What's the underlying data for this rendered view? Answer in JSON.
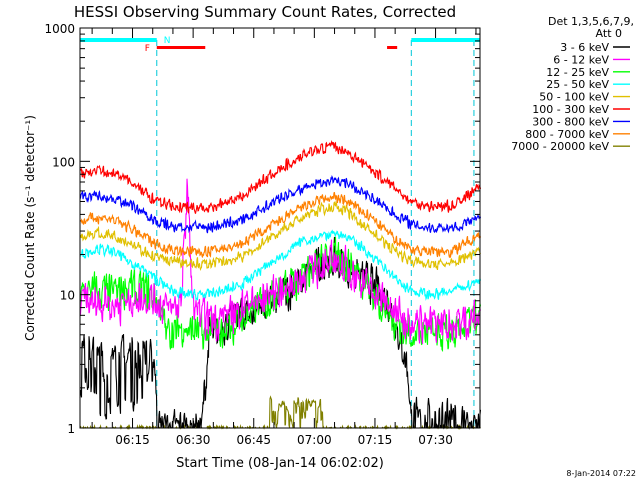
{
  "chart_data": {
    "type": "line",
    "title": "HESSI Observing Summary Count Rates, Corrected",
    "xlabel": "Start Time (08-Jan-14 06:02:02)",
    "ylabel": "Corrected Count Rate (s⁻¹ detector⁻¹)",
    "yscale": "log",
    "ylim": [
      1,
      1000
    ],
    "xlim_minutes_after_0602": [
      0,
      99
    ],
    "y_tick_labels": [
      "1",
      "10",
      "100",
      "1000"
    ],
    "x_tick_labels": [
      "06:15",
      "06:30",
      "06:45",
      "07:00",
      "07:15",
      "07:30"
    ],
    "legend_placement": "right",
    "legend_header": [
      "Det 1,3,5,6,7,9,",
      "Att 0"
    ],
    "series": [
      {
        "name": "3 - 6 keV",
        "color": "#000000",
        "points": [
          [
            0,
            3.5
          ],
          [
            4,
            3
          ],
          [
            7,
            2.5
          ],
          [
            10,
            3.2
          ],
          [
            18.5,
            3
          ],
          [
            19,
            1
          ],
          [
            30,
            1
          ],
          [
            32,
            5
          ],
          [
            40,
            7
          ],
          [
            48,
            9
          ],
          [
            55,
            13
          ],
          [
            60,
            17
          ],
          [
            63,
            18
          ],
          [
            66,
            16
          ],
          [
            72,
            12
          ],
          [
            76,
            9
          ],
          [
            78,
            6
          ],
          [
            81,
            3
          ],
          [
            82,
            1
          ],
          [
            93,
            1
          ],
          [
            99,
            1
          ]
        ]
      },
      {
        "name": "6 - 12 keV",
        "color": "#ff00ff",
        "points": [
          [
            0,
            8.5
          ],
          [
            4,
            9
          ],
          [
            8,
            8.2
          ],
          [
            12,
            9
          ],
          [
            16,
            10
          ],
          [
            19,
            9
          ],
          [
            22,
            7.5
          ],
          [
            25,
            9
          ],
          [
            26.5,
            60
          ],
          [
            28,
            7.5
          ],
          [
            32,
            6.5
          ],
          [
            36,
            6.5
          ],
          [
            40,
            8
          ],
          [
            48,
            10
          ],
          [
            55,
            14
          ],
          [
            60,
            17
          ],
          [
            63,
            18
          ],
          [
            66,
            16
          ],
          [
            70,
            12
          ],
          [
            75,
            9
          ],
          [
            80,
            6.5
          ],
          [
            86,
            6
          ],
          [
            92,
            6
          ],
          [
            99,
            7
          ]
        ]
      },
      {
        "name": "12 - 25 keV",
        "color": "#00ff00",
        "points": [
          [
            0,
            10.5
          ],
          [
            4,
            11
          ],
          [
            8,
            10.2
          ],
          [
            12,
            11
          ],
          [
            16,
            11
          ],
          [
            19,
            9
          ],
          [
            22,
            5
          ],
          [
            26,
            6
          ],
          [
            28,
            5.2
          ],
          [
            32,
            5
          ],
          [
            36,
            5.5
          ],
          [
            40,
            6.5
          ],
          [
            48,
            10
          ],
          [
            55,
            14
          ],
          [
            60,
            18
          ],
          [
            63,
            19
          ],
          [
            66,
            17
          ],
          [
            70,
            13
          ],
          [
            75,
            8
          ],
          [
            80,
            5.5
          ],
          [
            86,
            5
          ],
          [
            92,
            5
          ],
          [
            99,
            7
          ]
        ]
      },
      {
        "name": "25 - 50 keV",
        "color": "#00ffff",
        "points": [
          [
            0,
            20
          ],
          [
            4,
            22
          ],
          [
            8,
            21
          ],
          [
            12,
            18
          ],
          [
            16,
            15
          ],
          [
            19,
            13
          ],
          [
            22,
            11
          ],
          [
            26,
            10
          ],
          [
            28,
            10
          ],
          [
            32,
            10
          ],
          [
            40,
            12
          ],
          [
            48,
            18
          ],
          [
            55,
            25
          ],
          [
            60,
            28
          ],
          [
            63,
            29
          ],
          [
            66,
            27
          ],
          [
            72,
            20
          ],
          [
            78,
            13
          ],
          [
            82,
            11
          ],
          [
            86,
            10
          ],
          [
            92,
            10.5
          ],
          [
            99,
            13
          ]
        ]
      },
      {
        "name": "50 - 100 keV",
        "color": "#e0c000",
        "points": [
          [
            0,
            27
          ],
          [
            4,
            29
          ],
          [
            8,
            28
          ],
          [
            12,
            25
          ],
          [
            16,
            21
          ],
          [
            19,
            19
          ],
          [
            22,
            18
          ],
          [
            26,
            17
          ],
          [
            28,
            17
          ],
          [
            32,
            17
          ],
          [
            40,
            19
          ],
          [
            48,
            28
          ],
          [
            55,
            38
          ],
          [
            60,
            44
          ],
          [
            63,
            46
          ],
          [
            66,
            42
          ],
          [
            72,
            30
          ],
          [
            78,
            21
          ],
          [
            82,
            18
          ],
          [
            86,
            17
          ],
          [
            92,
            17
          ],
          [
            99,
            22
          ]
        ]
      },
      {
        "name": "100 - 300 keV",
        "color": "#ff0000",
        "points": [
          [
            0,
            83
          ],
          [
            4,
            85
          ],
          [
            8,
            82
          ],
          [
            12,
            72
          ],
          [
            16,
            58
          ],
          [
            19,
            50
          ],
          [
            22,
            47
          ],
          [
            26,
            45
          ],
          [
            28,
            45
          ],
          [
            32,
            45
          ],
          [
            40,
            55
          ],
          [
            48,
            82
          ],
          [
            55,
            112
          ],
          [
            60,
            126
          ],
          [
            63,
            128
          ],
          [
            66,
            118
          ],
          [
            72,
            88
          ],
          [
            78,
            62
          ],
          [
            82,
            50
          ],
          [
            86,
            46
          ],
          [
            92,
            46
          ],
          [
            99,
            65
          ]
        ]
      },
      {
        "name": "300 - 800 keV",
        "color": "#0000ff",
        "points": [
          [
            0,
            54
          ],
          [
            4,
            55
          ],
          [
            8,
            53
          ],
          [
            12,
            48
          ],
          [
            16,
            40
          ],
          [
            19,
            35
          ],
          [
            22,
            33
          ],
          [
            26,
            32
          ],
          [
            28,
            32
          ],
          [
            32,
            32
          ],
          [
            40,
            36
          ],
          [
            48,
            50
          ],
          [
            55,
            63
          ],
          [
            60,
            70
          ],
          [
            63,
            72
          ],
          [
            66,
            68
          ],
          [
            72,
            54
          ],
          [
            78,
            40
          ],
          [
            82,
            34
          ],
          [
            86,
            32
          ],
          [
            92,
            32
          ],
          [
            99,
            37
          ]
        ]
      },
      {
        "name": "800 - 7000 keV",
        "color": "#ff8000",
        "points": [
          [
            0,
            36
          ],
          [
            4,
            38
          ],
          [
            8,
            37
          ],
          [
            12,
            32
          ],
          [
            16,
            27
          ],
          [
            19,
            24
          ],
          [
            22,
            22
          ],
          [
            26,
            21
          ],
          [
            28,
            21
          ],
          [
            32,
            21
          ],
          [
            40,
            24
          ],
          [
            48,
            34
          ],
          [
            55,
            45
          ],
          [
            60,
            52
          ],
          [
            63,
            54
          ],
          [
            66,
            50
          ],
          [
            72,
            38
          ],
          [
            78,
            26
          ],
          [
            82,
            22
          ],
          [
            86,
            21
          ],
          [
            92,
            21
          ],
          [
            99,
            29
          ]
        ]
      },
      {
        "name": "7000 - 20000 keV",
        "color": "#808000",
        "points": [
          [
            0,
            1
          ],
          [
            99,
            1
          ]
        ]
      }
    ],
    "state_bars": [
      {
        "label": "",
        "color": "#00ffff",
        "segments": [
          [
            0,
            19
          ],
          [
            82,
            99
          ]
        ]
      },
      {
        "label": "N",
        "color": "#00ffff",
        "segments": []
      },
      {
        "label": "F",
        "color": "#ff0000",
        "segments": [
          [
            19,
            31
          ],
          [
            76,
            78.5
          ]
        ]
      }
    ],
    "vertical_markers_minutes": [
      19,
      82,
      97.5
    ]
  },
  "footer": {
    "date_stamp": "8-Jan-2014 07:22"
  }
}
